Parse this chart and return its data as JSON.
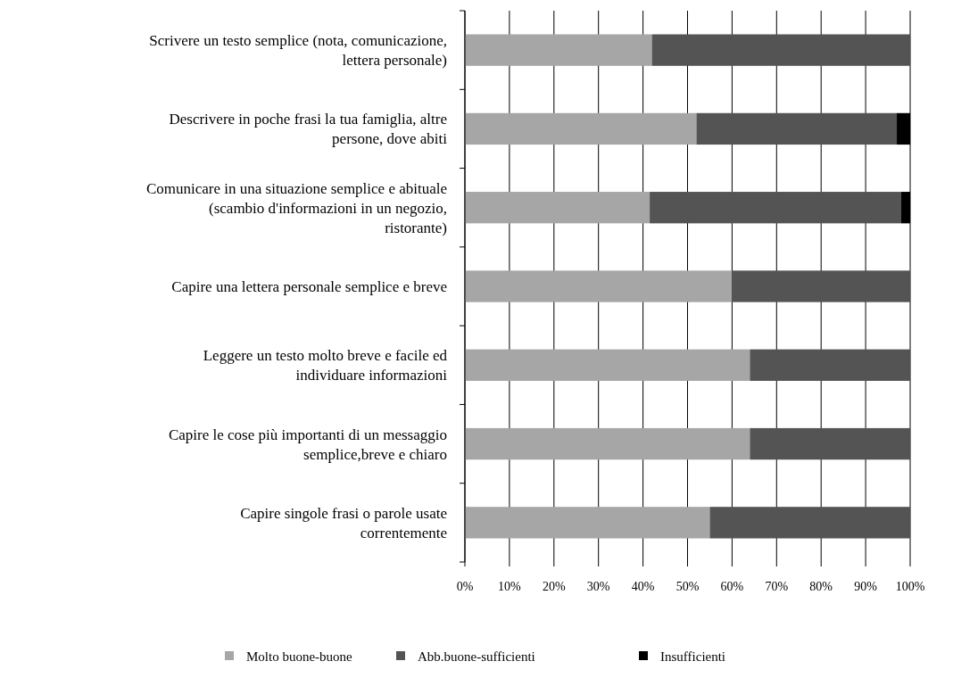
{
  "chart_data": {
    "type": "bar",
    "orientation": "horizontal",
    "stacked": true,
    "categories": [
      "Scrivere un testo semplice (nota, comunicazione, lettera personale)",
      "Descrivere in poche frasi la tua famiglia, altre persone, dove abiti",
      "Comunicare in una situazione semplice e abituale (scambio d'informazioni in un negozio, ristorante)",
      "Capire una lettera personale semplice e breve",
      "Leggere un testo molto breve e facile ed individuare informazioni",
      "Capire le cose più importanti di un messaggio semplice,breve e chiaro",
      "Capire singole frasi o parole usate correntemente"
    ],
    "series": [
      {
        "name": "Molto buone-buone",
        "color": "#a6a6a6",
        "values": [
          42,
          52,
          41.5,
          60,
          64,
          64,
          55
        ]
      },
      {
        "name": "Abb.buone-sufficienti",
        "color": "#545454",
        "values": [
          58,
          45,
          56.5,
          40,
          36,
          36,
          45
        ]
      },
      {
        "name": "Insufficienti",
        "color": "#000000",
        "values": [
          0,
          3,
          2,
          0,
          0,
          0,
          0
        ]
      }
    ],
    "xlim": [
      0,
      100
    ],
    "xticks": [
      {
        "value": 0,
        "label": "0%"
      },
      {
        "value": 10,
        "label": "10%"
      },
      {
        "value": 20,
        "label": "20%"
      },
      {
        "value": 30,
        "label": "30%"
      },
      {
        "value": 40,
        "label": "40%"
      },
      {
        "value": 50,
        "label": "50%"
      },
      {
        "value": 60,
        "label": "60%"
      },
      {
        "value": 70,
        "label": "70%"
      },
      {
        "value": 80,
        "label": "80%"
      },
      {
        "value": 90,
        "label": "90%"
      },
      {
        "value": 100,
        "label": "100%"
      }
    ],
    "grid": "x",
    "legend": "bottom"
  }
}
